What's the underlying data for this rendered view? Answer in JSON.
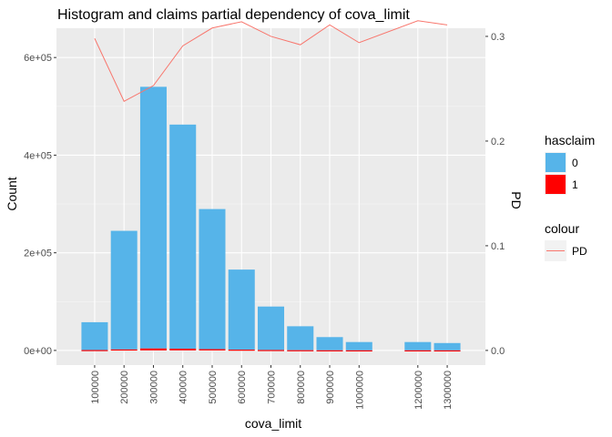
{
  "chart_data": {
    "type": "bar",
    "title": "Histogram and claims partial dependency of cova_limit",
    "xlabel": "cova_limit",
    "ylabel": "Count",
    "y2label": "PD",
    "categories": [
      "100000",
      "200000",
      "300000",
      "400000",
      "500000",
      "600000",
      "700000",
      "800000",
      "900000",
      "1000000",
      "1200000",
      "1300000"
    ],
    "x_positions": [
      100000,
      200000,
      300000,
      400000,
      500000,
      600000,
      700000,
      800000,
      900000,
      1000000,
      1200000,
      1300000
    ],
    "xlim": [
      -30000,
      1430000
    ],
    "ylim": [
      -30000,
      660000
    ],
    "y_ticks": [
      0,
      200000,
      400000,
      600000
    ],
    "y_tick_labels": [
      "0e+00",
      "2e+05",
      "4e+05",
      "6e+05"
    ],
    "y2lim": [
      -0.014,
      0.3078
    ],
    "y2_ticks": [
      0.0,
      0.1,
      0.2,
      0.3
    ],
    "y2_tick_labels": [
      "0.0",
      "0.1",
      "0.2",
      "0.3"
    ],
    "series": [
      {
        "name": "0",
        "color": "#56B4E9",
        "values": [
          57000,
          243000,
          536000,
          459000,
          287000,
          164000,
          89000,
          49000,
          27000,
          17000,
          17000,
          15000
        ]
      },
      {
        "name": "1",
        "color": "#FF0000",
        "values": [
          800,
          2000,
          4000,
          3600,
          2600,
          1600,
          900,
          500,
          300,
          200,
          200,
          150
        ]
      }
    ],
    "pd_line": {
      "name": "PD",
      "color": "#F8766D",
      "x": [
        100000,
        200000,
        300000,
        400000,
        500000,
        600000,
        700000,
        800000,
        900000,
        1000000,
        1200000,
        1300000
      ],
      "values": [
        0.298,
        0.238,
        0.253,
        0.291,
        0.308,
        0.314,
        0.3,
        0.292,
        0.311,
        0.294,
        0.315,
        0.311
      ]
    },
    "legend": {
      "fill_title": "hasclaim",
      "fill_items": [
        {
          "label": "0",
          "color": "#56B4E9"
        },
        {
          "label": "1",
          "color": "#FF0000"
        }
      ],
      "colour_title": "colour",
      "colour_items": [
        {
          "label": "PD",
          "color": "#F8766D"
        }
      ],
      "position": "right"
    },
    "grid": true
  }
}
